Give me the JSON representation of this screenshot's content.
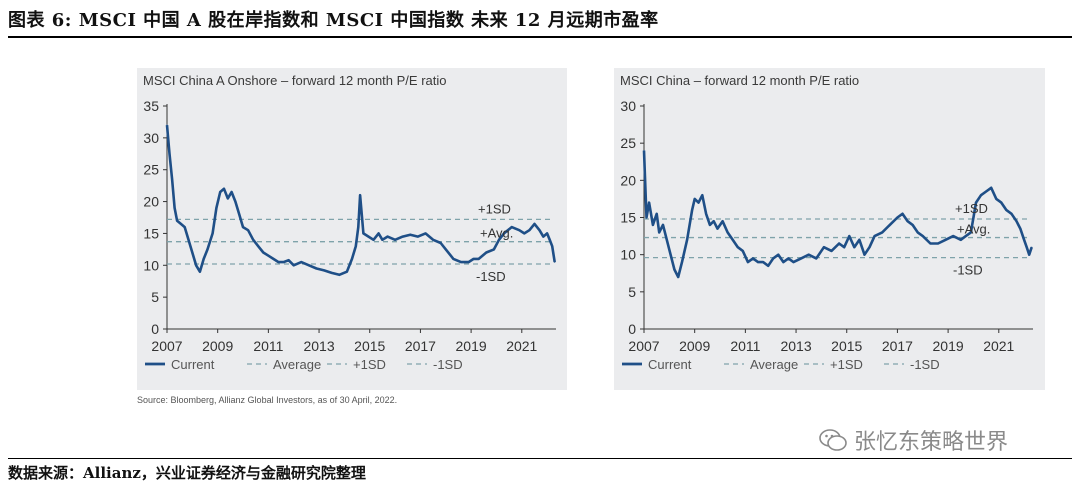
{
  "figure": {
    "title": "图表 6:   MSCI 中国 A 股在岸指数和 MSCI 中国指数 未来 12 月远期市盈率",
    "source_note": "Source: Bloomberg, Allianz Global Investors, as of 30 April, 2022.",
    "footer": "数据来源：Allianz，兴业证券经济与金融研究院整理",
    "watermark": "张忆东策略世界"
  },
  "colors": {
    "series": "#1f4f87",
    "reference": "#7fa3aa",
    "panel_bg": "#ebecee",
    "axis": "#333333"
  },
  "chart_data": [
    {
      "type": "line",
      "title": "MSCI China A Onshore – forward 12 month P/E ratio",
      "x_ticks": [
        "2007",
        "2009",
        "2011",
        "2013",
        "2015",
        "2017",
        "2019",
        "2021"
      ],
      "y_ticks": [
        "0",
        "5",
        "10",
        "15",
        "20",
        "25",
        "30",
        "35"
      ],
      "xlim": [
        2007,
        2022.35
      ],
      "ylim": [
        0,
        35
      ],
      "legend": [
        "Current",
        "Average",
        "+1SD",
        "-1SD"
      ],
      "legend_position": "bottom",
      "annotations": [
        "+1SD",
        "+Avg.",
        "-1SD"
      ],
      "reference_lines": {
        "plus1sd": 17.2,
        "average": 13.7,
        "minus1sd": 10.2
      },
      "series": [
        {
          "name": "Current",
          "x": [
            2007.0,
            2007.1,
            2007.2,
            2007.3,
            2007.4,
            2007.55,
            2007.7,
            2007.85,
            2008.0,
            2008.15,
            2008.3,
            2008.45,
            2008.6,
            2008.8,
            2008.95,
            2009.1,
            2009.25,
            2009.4,
            2009.55,
            2009.7,
            2009.85,
            2010.0,
            2010.2,
            2010.4,
            2010.6,
            2010.8,
            2011.0,
            2011.2,
            2011.4,
            2011.6,
            2011.8,
            2012.0,
            2012.3,
            2012.6,
            2012.9,
            2013.2,
            2013.5,
            2013.8,
            2014.1,
            2014.3,
            2014.45,
            2014.55,
            2014.62,
            2014.75,
            2014.95,
            2015.15,
            2015.35,
            2015.5,
            2015.7,
            2016.0,
            2016.3,
            2016.6,
            2016.9,
            2017.2,
            2017.5,
            2017.8,
            2018.0,
            2018.3,
            2018.6,
            2018.9,
            2019.1,
            2019.3,
            2019.6,
            2019.9,
            2020.1,
            2020.3,
            2020.6,
            2020.9,
            2021.1,
            2021.3,
            2021.5,
            2021.7,
            2021.85,
            2022.0,
            2022.1,
            2022.2,
            2022.3
          ],
          "y": [
            32.0,
            27.5,
            23.5,
            19.0,
            17.0,
            16.5,
            16.0,
            14.0,
            12.0,
            10.0,
            9.0,
            11.0,
            12.5,
            15.0,
            19.0,
            21.5,
            22.0,
            20.5,
            21.5,
            20.0,
            18.0,
            16.0,
            15.5,
            14.0,
            13.0,
            12.0,
            11.5,
            11.0,
            10.5,
            10.5,
            10.8,
            10.0,
            10.5,
            10.0,
            9.5,
            9.2,
            8.8,
            8.5,
            9.0,
            11.0,
            13.0,
            16.0,
            21.0,
            15.0,
            14.5,
            14.0,
            15.0,
            14.0,
            14.5,
            14.0,
            14.5,
            14.8,
            14.5,
            15.0,
            14.0,
            13.5,
            12.5,
            11.0,
            10.5,
            10.5,
            11.0,
            11.0,
            12.0,
            12.5,
            14.0,
            15.0,
            16.0,
            15.5,
            15.0,
            15.5,
            16.5,
            15.5,
            14.5,
            15.0,
            14.0,
            13.0,
            10.5
          ]
        }
      ]
    },
    {
      "type": "line",
      "title": "MSCI China – forward 12 month P/E ratio",
      "x_ticks": [
        "2007",
        "2009",
        "2011",
        "2013",
        "2015",
        "2017",
        "2019",
        "2021"
      ],
      "y_ticks": [
        "0",
        "5",
        "10",
        "15",
        "20",
        "25",
        "30"
      ],
      "xlim": [
        2007,
        2022.35
      ],
      "ylim": [
        0,
        30
      ],
      "legend": [
        "Current",
        "Average",
        "+1SD",
        "-1SD"
      ],
      "legend_position": "bottom",
      "annotations": [
        "+1SD",
        "+Avg.",
        "-1SD"
      ],
      "reference_lines": {
        "plus1sd": 14.8,
        "average": 12.3,
        "minus1sd": 9.6
      },
      "series": [
        {
          "name": "Current",
          "x": [
            2007.0,
            2007.1,
            2007.2,
            2007.35,
            2007.5,
            2007.6,
            2007.75,
            2007.9,
            2008.05,
            2008.2,
            2008.35,
            2008.5,
            2008.7,
            2008.9,
            2009.0,
            2009.15,
            2009.3,
            2009.45,
            2009.6,
            2009.75,
            2009.9,
            2010.1,
            2010.3,
            2010.5,
            2010.7,
            2010.9,
            2011.1,
            2011.3,
            2011.5,
            2011.7,
            2011.9,
            2012.1,
            2012.3,
            2012.5,
            2012.7,
            2012.9,
            2013.2,
            2013.5,
            2013.8,
            2014.1,
            2014.4,
            2014.7,
            2014.9,
            2015.1,
            2015.3,
            2015.5,
            2015.7,
            2015.9,
            2016.1,
            2016.4,
            2016.7,
            2017.0,
            2017.2,
            2017.4,
            2017.6,
            2017.8,
            2018.0,
            2018.3,
            2018.6,
            2018.9,
            2019.2,
            2019.5,
            2019.7,
            2019.9,
            2020.1,
            2020.3,
            2020.5,
            2020.7,
            2020.9,
            2021.1,
            2021.3,
            2021.5,
            2021.7,
            2021.85,
            2022.0,
            2022.1,
            2022.2,
            2022.3
          ],
          "y": [
            24.0,
            15.0,
            17.0,
            14.0,
            15.5,
            13.0,
            14.0,
            12.0,
            10.0,
            8.0,
            7.0,
            9.0,
            12.0,
            16.0,
            17.5,
            17.0,
            18.0,
            15.5,
            14.0,
            14.5,
            13.5,
            14.5,
            13.0,
            12.0,
            11.0,
            10.5,
            9.0,
            9.5,
            9.0,
            9.0,
            8.5,
            9.5,
            10.0,
            9.0,
            9.5,
            9.0,
            9.5,
            10.0,
            9.5,
            11.0,
            10.5,
            11.5,
            11.0,
            12.5,
            11.0,
            12.0,
            10.0,
            11.0,
            12.5,
            13.0,
            14.0,
            15.0,
            15.5,
            14.5,
            14.0,
            13.0,
            12.5,
            11.5,
            11.5,
            12.0,
            12.5,
            12.0,
            12.5,
            13.0,
            17.0,
            18.0,
            18.5,
            19.0,
            17.5,
            17.0,
            16.0,
            15.5,
            14.5,
            13.5,
            12.0,
            11.0,
            10.0,
            11.0
          ]
        }
      ]
    }
  ]
}
